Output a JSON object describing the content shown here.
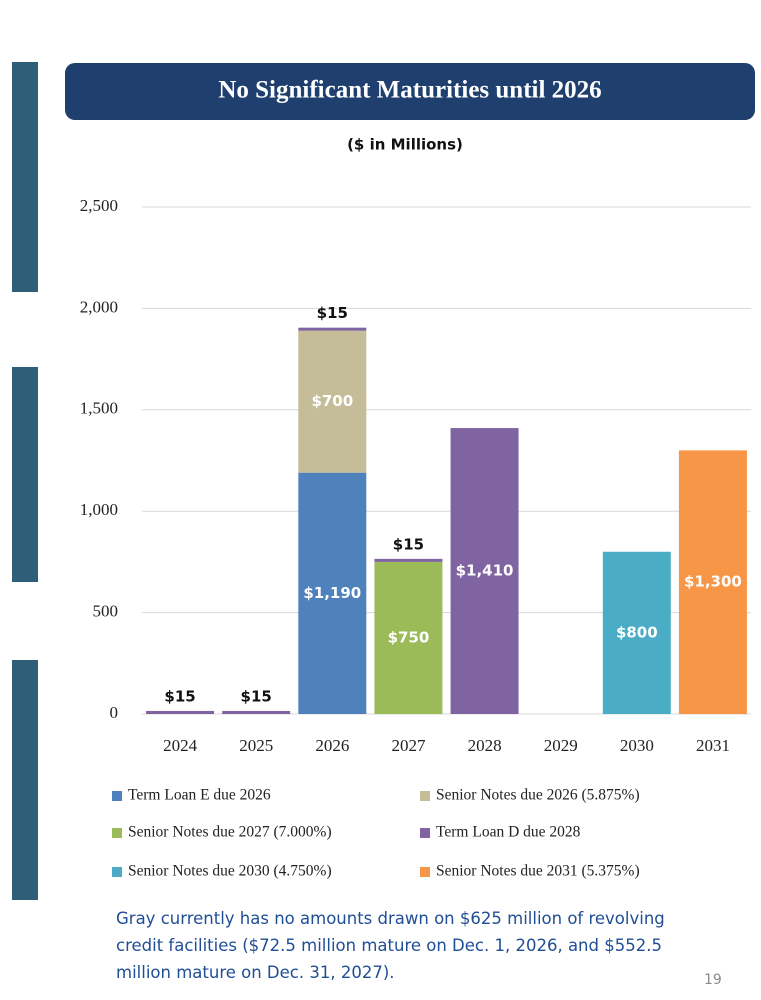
{
  "chart_data": {
    "type": "stacked-bar",
    "title": "No Significant Maturities until 2026",
    "subtitle": "($ in Millions)",
    "categories": [
      "2024",
      "2025",
      "2026",
      "2027",
      "2028",
      "2029",
      "2030",
      "2031"
    ],
    "series": [
      {
        "name": "Term Loan E due 2026",
        "color": "#4f81bd",
        "values": [
          null,
          null,
          1190,
          null,
          null,
          null,
          null,
          null
        ],
        "value_labels": [
          null,
          null,
          "$1,190",
          null,
          null,
          null,
          null,
          null
        ]
      },
      {
        "name": "Senior Notes due 2026 (5.875%)",
        "color": "#c4bd97",
        "values": [
          null,
          null,
          700,
          null,
          null,
          null,
          null,
          null
        ],
        "value_labels": [
          null,
          null,
          "$700",
          null,
          null,
          null,
          null,
          null
        ]
      },
      {
        "name": "Senior Notes due 2027 (7.000%)",
        "color": "#9bbb59",
        "values": [
          null,
          null,
          null,
          750,
          null,
          null,
          null,
          null
        ],
        "value_labels": [
          null,
          null,
          null,
          "$750",
          null,
          null,
          null,
          null
        ]
      },
      {
        "name": "Term Loan D due 2028",
        "color": "#8064a2",
        "values": [
          15,
          15,
          15,
          15,
          1410,
          null,
          null,
          null
        ],
        "value_labels": [
          "$15",
          "$15",
          "$15",
          "$15",
          "$1,410",
          null,
          null,
          null
        ]
      },
      {
        "name": "Senior Notes due 2030 (4.750%)",
        "color": "#4bacc6",
        "values": [
          null,
          null,
          null,
          null,
          null,
          null,
          800,
          null
        ],
        "value_labels": [
          null,
          null,
          null,
          null,
          null,
          null,
          "$800",
          null
        ]
      },
      {
        "name": "Senior Notes due 2031 (5.375%)",
        "color": "#f79646",
        "values": [
          null,
          null,
          null,
          null,
          null,
          null,
          null,
          1300
        ],
        "value_labels": [
          null,
          null,
          null,
          null,
          null,
          null,
          null,
          "$1,300"
        ]
      }
    ],
    "ylim": [
      0,
      2500
    ],
    "yticks": [
      0,
      500,
      {
        "value": 1000,
        "label": "1,000"
      },
      {
        "value": 1500,
        "label": "1,500"
      },
      {
        "value": 2000,
        "label": "2,000"
      },
      {
        "value": 2500,
        "label": "2,500"
      }
    ],
    "grid": true
  },
  "footnote": "Gray currently has no amounts drawn on $625 million of revolving credit facilities ($72.5 million mature on Dec. 1, 2026, and $552.5 million mature on Dec. 31, 2027).",
  "page_number": "19"
}
